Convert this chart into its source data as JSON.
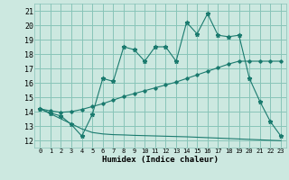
{
  "title": "",
  "xlabel": "Humidex (Indice chaleur)",
  "bg_color": "#cce8e0",
  "grid_color": "#88c4b8",
  "line_color": "#1a7a6e",
  "xlim": [
    -0.5,
    23.5
  ],
  "ylim": [
    11.5,
    21.5
  ],
  "xticks": [
    0,
    1,
    2,
    3,
    4,
    5,
    6,
    7,
    8,
    9,
    10,
    11,
    12,
    13,
    14,
    15,
    16,
    17,
    18,
    19,
    20,
    21,
    22,
    23
  ],
  "yticks": [
    12,
    13,
    14,
    15,
    16,
    17,
    18,
    19,
    20,
    21
  ],
  "main_y": [
    14.2,
    13.9,
    13.7,
    13.1,
    12.3,
    13.8,
    16.3,
    16.1,
    18.5,
    18.3,
    17.5,
    18.5,
    18.5,
    17.5,
    20.2,
    19.4,
    20.8,
    19.3,
    19.2,
    19.3,
    16.3,
    14.7,
    13.3,
    12.3
  ],
  "upper_y": [
    14.2,
    14.05,
    13.95,
    14.0,
    14.15,
    14.35,
    14.55,
    14.8,
    15.05,
    15.25,
    15.45,
    15.65,
    15.85,
    16.05,
    16.3,
    16.55,
    16.8,
    17.05,
    17.3,
    17.5,
    17.5,
    17.5,
    17.5,
    17.5
  ],
  "lower_y": [
    14.2,
    13.85,
    13.5,
    13.15,
    12.8,
    12.55,
    12.45,
    12.4,
    12.38,
    12.35,
    12.33,
    12.31,
    12.29,
    12.27,
    12.25,
    12.22,
    12.19,
    12.16,
    12.13,
    12.1,
    12.07,
    12.04,
    12.01,
    11.98
  ]
}
